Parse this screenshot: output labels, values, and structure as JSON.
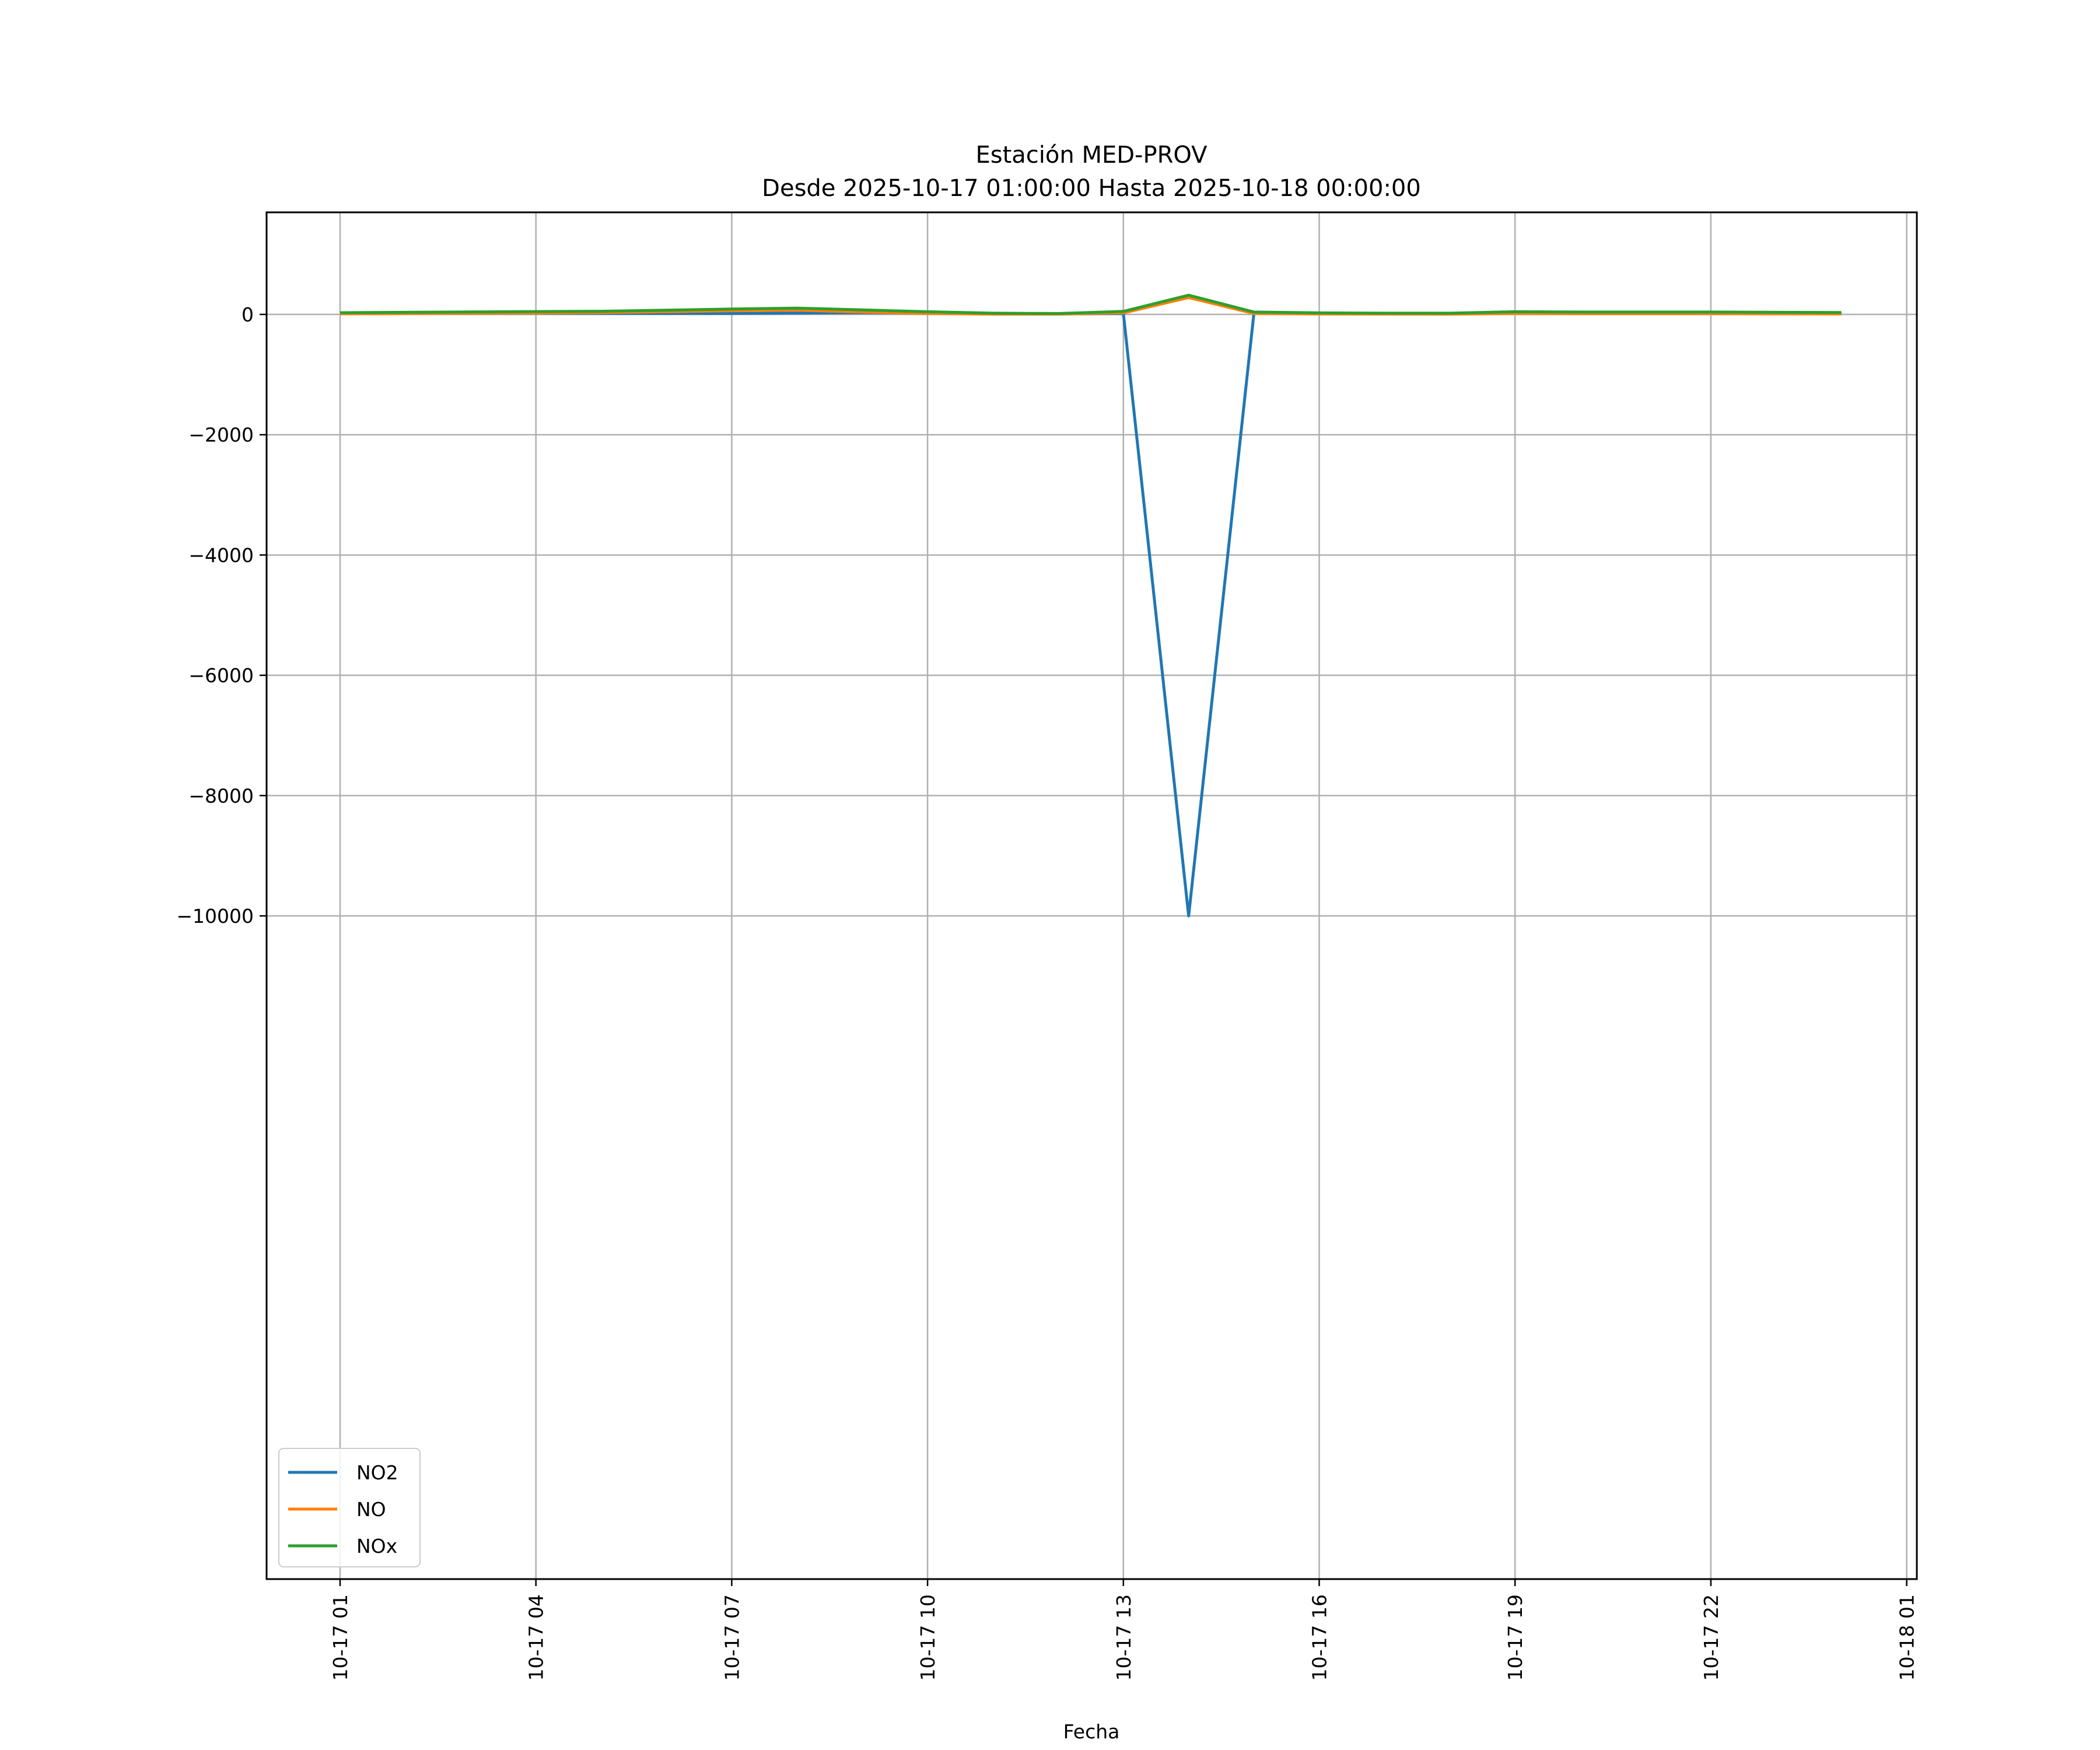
{
  "chart_data": {
    "type": "line",
    "title": "Estación MED-PROV",
    "subtitle": "Desde 2025-10-17 01:00:00 Hasta 2025-10-18 00:00:00",
    "xlabel": "Fecha",
    "ylabel": "",
    "x": [
      "10-17 01",
      "10-17 02",
      "10-17 03",
      "10-17 04",
      "10-17 05",
      "10-17 06",
      "10-17 07",
      "10-17 08",
      "10-17 09",
      "10-17 10",
      "10-17 11",
      "10-17 12",
      "10-17 13",
      "10-17 14",
      "10-17 15",
      "10-17 16",
      "10-17 17",
      "10-17 18",
      "10-17 19",
      "10-17 20",
      "10-17 21",
      "10-17 22",
      "10-17 23",
      "10-18 00"
    ],
    "x_ticks": [
      "10-17 01",
      "10-17 04",
      "10-17 07",
      "10-17 10",
      "10-17 13",
      "10-17 16",
      "10-17 19",
      "10-17 22",
      "10-18 01"
    ],
    "y_ticks": [
      0,
      -2000,
      -4000,
      -6000,
      -8000,
      -10000
    ],
    "y_tick_labels": [
      "0",
      "−2000",
      "−4000",
      "−6000",
      "−8000",
      "−10000"
    ],
    "ylim": [
      -10520,
      850
    ],
    "grid": true,
    "legend_position": "bottom-left",
    "series": [
      {
        "name": "NO2",
        "color": "#1f77b4",
        "values": [
          15,
          16,
          17,
          18,
          17,
          16,
          16,
          22,
          28,
          20,
          12,
          8,
          15,
          -10000,
          20,
          14,
          12,
          10,
          18,
          20,
          18,
          16,
          14,
          12
        ]
      },
      {
        "name": "NO",
        "color": "#ff7f0e",
        "values": [
          10,
          14,
          18,
          22,
          30,
          45,
          60,
          70,
          40,
          15,
          5,
          5,
          25,
          280,
          15,
          8,
          6,
          5,
          15,
          12,
          12,
          12,
          10,
          8
        ]
      },
      {
        "name": "NOx",
        "color": "#2ca02c",
        "values": [
          28,
          35,
          42,
          48,
          52,
          70,
          90,
          105,
          75,
          45,
          20,
          15,
          50,
          320,
          40,
          25,
          20,
          20,
          45,
          40,
          40,
          40,
          35,
          32
        ]
      }
    ]
  }
}
